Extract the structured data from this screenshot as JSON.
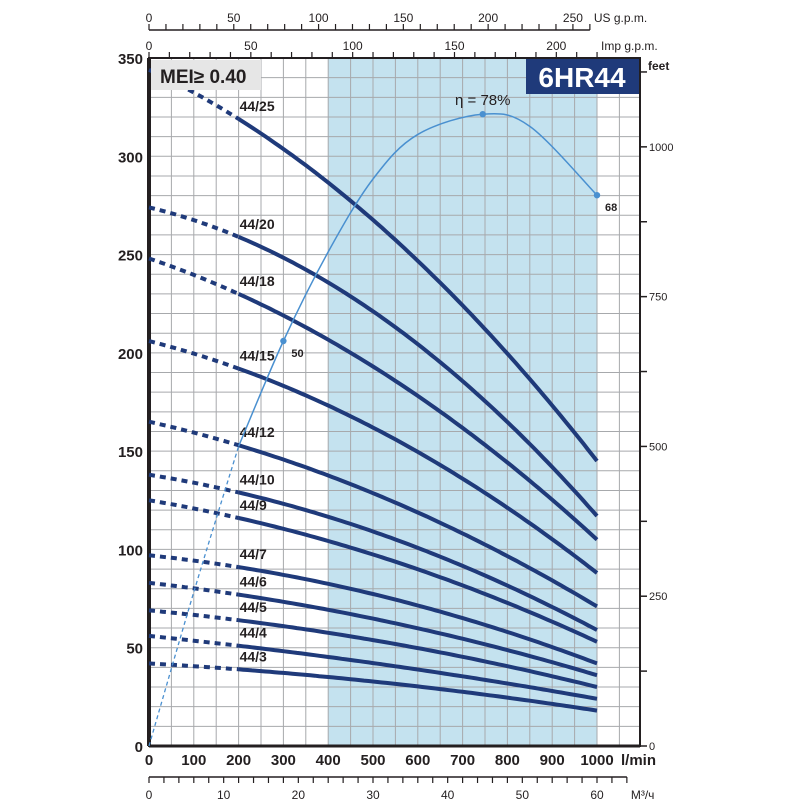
{
  "chart_data": {
    "type": "line",
    "title": "6HR44",
    "badge": "MEI≥ 0.40",
    "xlabel": "l/min",
    "ylabel": "",
    "xlim": [
      0,
      1100
    ],
    "ylim": [
      0,
      350
    ],
    "grid": true,
    "x_ticks": [
      0,
      100,
      200,
      300,
      400,
      500,
      600,
      700,
      800,
      900,
      1000
    ],
    "y_ticks": [
      0,
      50,
      100,
      150,
      200,
      250,
      300,
      350
    ],
    "right_axis": {
      "label": "feet",
      "ticks": [
        0,
        250,
        500,
        750,
        1000
      ]
    },
    "top_axis_us": {
      "label": "US g.p.m.",
      "ticks": [
        0,
        50,
        100,
        150,
        200,
        250
      ]
    },
    "top_axis_imp": {
      "label": "Imp g.p.m.",
      "ticks": [
        0,
        50,
        100,
        150,
        200
      ]
    },
    "bottom_axis_m3": {
      "label": "M³/ч",
      "ticks": [
        0,
        10,
        20,
        30,
        40,
        50,
        60
      ]
    },
    "recommended_range": [
      400,
      1000
    ],
    "series": [
      {
        "name": "44/25",
        "x": [
          0,
          200,
          1000
        ],
        "y": [
          344,
          319,
          145
        ]
      },
      {
        "name": "44/20",
        "x": [
          0,
          200,
          1000
        ],
        "y": [
          274,
          259,
          117
        ]
      },
      {
        "name": "44/18",
        "x": [
          0,
          200,
          1000
        ],
        "y": [
          248,
          230,
          105
        ]
      },
      {
        "name": "44/15",
        "x": [
          0,
          200,
          1000
        ],
        "y": [
          206,
          192,
          88
        ]
      },
      {
        "name": "44/12",
        "x": [
          0,
          200,
          1000
        ],
        "y": [
          165,
          153,
          71
        ]
      },
      {
        "name": "44/10",
        "x": [
          0,
          200,
          1000
        ],
        "y": [
          138,
          129,
          59
        ]
      },
      {
        "name": "44/9",
        "x": [
          0,
          200,
          1000
        ],
        "y": [
          125,
          116,
          53
        ]
      },
      {
        "name": "44/7",
        "x": [
          0,
          200,
          1000
        ],
        "y": [
          97,
          91,
          42
        ]
      },
      {
        "name": "44/6",
        "x": [
          0,
          200,
          1000
        ],
        "y": [
          83,
          77,
          36
        ]
      },
      {
        "name": "44/5",
        "x": [
          0,
          200,
          1000
        ],
        "y": [
          69,
          64,
          30
        ]
      },
      {
        "name": "44/4",
        "x": [
          0,
          200,
          1000
        ],
        "y": [
          56,
          51,
          24
        ]
      },
      {
        "name": "44/3",
        "x": [
          0,
          200,
          1000
        ],
        "y": [
          42,
          39,
          18
        ]
      }
    ],
    "efficiency": {
      "x": [
        0,
        100,
        200,
        300,
        400,
        500,
        600,
        745,
        850,
        1000
      ],
      "y": [
        0,
        19,
        37,
        50,
        61,
        70,
        75.5,
        78,
        76.5,
        68
      ],
      "annotations": [
        {
          "x": 300,
          "y": 50,
          "label": "50"
        },
        {
          "x": 745,
          "y": 78,
          "label": "η = 78%"
        },
        {
          "x": 1000,
          "y": 68,
          "label": "68"
        }
      ]
    },
    "colors": {
      "curve": "#1f3a7a",
      "efficiency": "#4a90d0",
      "range": "#c4e2ef",
      "badge": "#1f3a7a",
      "mei_box": "#e6e6e6",
      "axis": "#231f20",
      "grid": "#a7a9ac"
    }
  }
}
